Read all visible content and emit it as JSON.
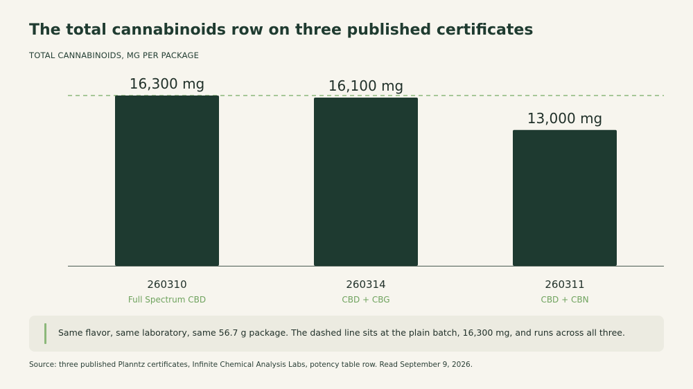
{
  "chart_data": {
    "type": "bar",
    "title": "The total cannabinoids row on three published certificates",
    "subtitle": "TOTAL CANNABINOIDS, MG PER PACKAGE",
    "categories": [
      "260310",
      "260314",
      "260311"
    ],
    "category_subtitles": [
      "Full Spectrum CBD",
      "CBD + CBG",
      "CBD + CBN"
    ],
    "values": [
      16300,
      16100,
      13000
    ],
    "value_labels": [
      "16,300 mg",
      "16,100 mg",
      "13,000 mg"
    ],
    "reference_line": 16300,
    "ylim": [
      0,
      16300
    ],
    "grid": false,
    "colors": {
      "bar": "#1e3a30",
      "reference_line": "#8cb87a",
      "axis": "#4a5a52",
      "subtitle_text": "#6fa35e",
      "background": "#f7f5ee",
      "note_background": "#ecebe1",
      "note_accent": "#8cb87a"
    }
  },
  "note": "Same flavor, same laboratory, same 56.7 g package. The dashed line sits at the plain batch, 16,300 mg, and runs across all three.",
  "source": "Source: three published Planntz certificates, Infinite Chemical Analysis Labs, potency table row. Read September 9, 2026."
}
